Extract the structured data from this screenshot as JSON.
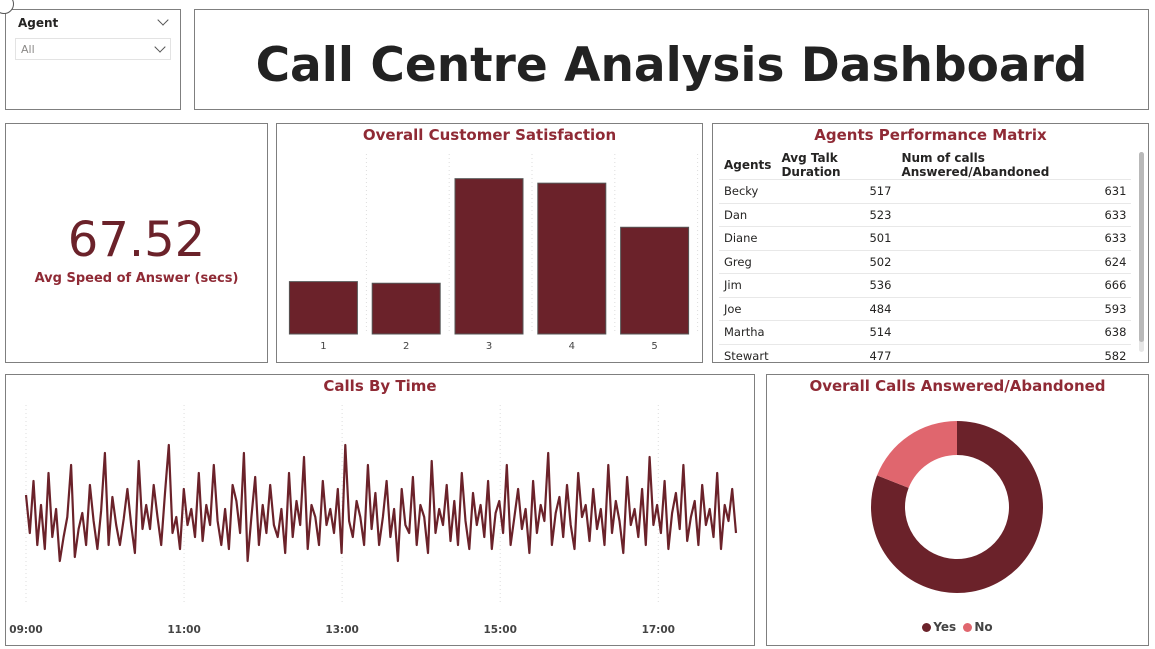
{
  "slicer": {
    "label": "Agent",
    "value": "All"
  },
  "title": "Call Centre Analysis Dashboard",
  "card": {
    "value": "67.52",
    "label": "Avg Speed of Answer (secs)"
  },
  "colors": {
    "primary": "#6b222a",
    "secondary": "#e0666e",
    "title": "#8f2a35"
  },
  "satisfaction": {
    "title": "Overall Customer Satisfaction",
    "chart_data": {
      "type": "bar",
      "categories": [
        "1",
        "2",
        "3",
        "4",
        "5"
      ],
      "values": [
        291,
        282,
        863,
        838,
        593
      ],
      "ylim": [
        0,
        1000
      ]
    }
  },
  "matrix": {
    "title": "Agents Performance Matrix",
    "headers": [
      "Agents",
      "Avg Talk Duration",
      "Num of calls Answered/Abandoned"
    ],
    "rows": [
      [
        "Becky",
        "517",
        "631"
      ],
      [
        "Dan",
        "523",
        "633"
      ],
      [
        "Diane",
        "501",
        "633"
      ],
      [
        "Greg",
        "502",
        "624"
      ],
      [
        "Jim",
        "536",
        "666"
      ],
      [
        "Joe",
        "484",
        "593"
      ],
      [
        "Martha",
        "514",
        "638"
      ],
      [
        "Stewart",
        "477",
        "582"
      ]
    ]
  },
  "calls_by_time": {
    "title": "Calls By Time",
    "chart_data": {
      "type": "line",
      "x_ticks": [
        "09:00",
        "11:00",
        "13:00",
        "15:00",
        "17:00"
      ],
      "x_range": [
        "09:00",
        "17:59"
      ],
      "values": [
        55,
        36,
        62,
        30,
        50,
        28,
        66,
        34,
        48,
        22,
        34,
        44,
        70,
        24,
        38,
        46,
        30,
        60,
        42,
        28,
        47,
        76,
        30,
        54,
        40,
        30,
        43,
        58,
        40,
        26,
        72,
        38,
        50,
        38,
        60,
        44,
        30,
        56,
        80,
        36,
        44,
        28,
        58,
        40,
        48,
        34,
        66,
        32,
        50,
        40,
        70,
        42,
        30,
        48,
        28,
        60,
        52,
        36,
        76,
        22,
        44,
        64,
        30,
        50,
        36,
        60,
        40,
        34,
        48,
        26,
        66,
        34,
        52,
        40,
        74,
        28,
        50,
        44,
        30,
        62,
        40,
        48,
        36,
        58,
        26,
        80,
        42,
        34,
        52,
        44,
        30,
        70,
        38,
        56,
        30,
        44,
        62,
        34,
        48,
        22,
        58,
        40,
        36,
        64,
        30,
        50,
        44,
        26,
        72,
        36,
        48,
        40,
        60,
        32,
        52,
        30,
        66,
        42,
        28,
        56,
        40,
        50,
        34,
        62,
        28,
        46,
        52,
        36,
        70,
        30,
        44,
        58,
        38,
        48,
        26,
        62,
        36,
        50,
        42,
        76,
        30,
        46,
        54,
        34,
        60,
        40,
        28,
        66,
        44,
        50,
        32,
        58,
        38,
        48,
        30,
        70,
        36,
        52,
        42,
        26,
        64,
        40,
        48,
        34,
        58,
        30,
        74,
        40,
        50,
        36,
        62,
        28,
        46,
        56,
        38,
        70,
        32,
        44,
        52,
        30,
        60,
        40,
        48,
        34,
        66,
        28,
        50,
        42,
        58,
        36
      ],
      "ylim": [
        0,
        100
      ]
    }
  },
  "answered": {
    "title": "Overall Calls Answered/Abandoned",
    "chart_data": {
      "type": "pie",
      "labels": [
        "Yes",
        "No"
      ],
      "values": [
        81,
        19
      ]
    }
  }
}
